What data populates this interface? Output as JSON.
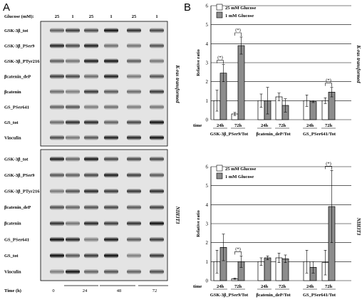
{
  "panel_a": {
    "letter": "A",
    "glucose_label": "Glucose (mM):",
    "glucose_values": [
      "25",
      "1",
      "25",
      "1",
      "25",
      "1"
    ],
    "ras_blot_labels": [
      "GSK-3β_tot",
      "GSK-3β_PSer9",
      "GSK-3β_PTyr216",
      "βcatenin_deP",
      "βcatenin",
      "GS_PSer641",
      "GS_tot",
      "Vinculin"
    ],
    "nih_blot_labels": [
      "GSK-3β_tot",
      "GSK-3β_PSer9",
      "GSK-3β_PTyr216",
      "βcatenin_deP",
      "βcatenin",
      "GS_PSer641",
      "GS_tot",
      "Vinculin"
    ],
    "ras_side_label": "K-ras transformed",
    "nih_side_label": "NIH3T3",
    "time_label": "Time (h)",
    "time_values": [
      "0",
      "24",
      "48",
      "72"
    ]
  },
  "panel_b": {
    "letter": "B",
    "ras_side_label": "K-ras transformed",
    "nih_side_label": "NIH3T3"
  },
  "chart_data": [
    {
      "type": "bar",
      "ylabel": "Relative ratio",
      "ylim": [
        0,
        6
      ],
      "yticks": [
        0,
        1,
        2,
        3,
        4,
        5,
        6
      ],
      "grid": true,
      "legend_position": "top-left",
      "series_names": [
        "25 mM Glucose",
        "1 mM Glucose"
      ],
      "series_colors": [
        "#ffffff",
        "#8c8c8c"
      ],
      "time_label": "time",
      "groups": [
        {
          "label": "GSK-3β_PSer9/Tot",
          "subgroups": [
            {
              "time": "24h",
              "values": [
                1.0,
                2.45
              ],
              "errors": [
                0.55,
                0.45
              ],
              "annotation": "(*)"
            },
            {
              "time": "72h",
              "values": [
                0.3,
                3.9
              ],
              "errors": [
                0.08,
                0.45
              ],
              "annotation": "(*)"
            }
          ]
        },
        {
          "label": "βcatenin_deP/Tot",
          "subgroups": [
            {
              "time": "24h",
              "values": [
                1.0,
                1.0
              ],
              "errors": [
                0.35,
                0.7
              ],
              "annotation": ""
            },
            {
              "time": "72h",
              "values": [
                1.2,
                0.75
              ],
              "errors": [
                0.2,
                0.35
              ],
              "annotation": ""
            }
          ]
        },
        {
          "label": "GS_PSer641/Tot",
          "subgroups": [
            {
              "time": "24h",
              "values": [
                1.0,
                0.95
              ],
              "errors": [
                0.3,
                0.05
              ],
              "annotation": ""
            },
            {
              "time": "72h",
              "values": [
                1.0,
                1.45
              ],
              "errors": [
                0.15,
                0.25
              ],
              "annotation": "(*)"
            }
          ]
        }
      ]
    },
    {
      "type": "bar",
      "ylabel": "Relative ratio",
      "ylim": [
        0,
        6
      ],
      "yticks": [
        0,
        1,
        2,
        3,
        4,
        5,
        6
      ],
      "grid": true,
      "legend_position": "top-left",
      "series_names": [
        "25 mM Glucose",
        "1 mM Glucose"
      ],
      "series_colors": [
        "#ffffff",
        "#8c8c8c"
      ],
      "time_label": "time",
      "groups": [
        {
          "label": "GSK-3β_PSer9/Tot",
          "subgroups": [
            {
              "time": "24h",
              "values": [
                1.0,
                1.75
              ],
              "errors": [
                0.6,
                0.7
              ],
              "annotation": ""
            },
            {
              "time": "72h",
              "values": [
                0.1,
                1.0
              ],
              "errors": [
                0.03,
                0.3
              ],
              "annotation": "(*)"
            }
          ]
        },
        {
          "label": "βcatenin_deP/Tot",
          "subgroups": [
            {
              "time": "24h",
              "values": [
                1.0,
                1.2
              ],
              "errors": [
                0.2,
                0.1
              ],
              "annotation": ""
            },
            {
              "time": "72h",
              "values": [
                1.2,
                1.15
              ],
              "errors": [
                0.25,
                0.2
              ],
              "annotation": ""
            }
          ]
        },
        {
          "label": "GS_PSer641/Tot",
          "subgroups": [
            {
              "time": "24h",
              "values": [
                1.0,
                0.7
              ],
              "errors": [
                0.6,
                0.3
              ],
              "annotation": ""
            },
            {
              "time": "72h",
              "values": [
                0.95,
                3.9
              ],
              "errors": [
                0.65,
                1.9
              ],
              "annotation": "(*)"
            }
          ]
        }
      ]
    }
  ]
}
